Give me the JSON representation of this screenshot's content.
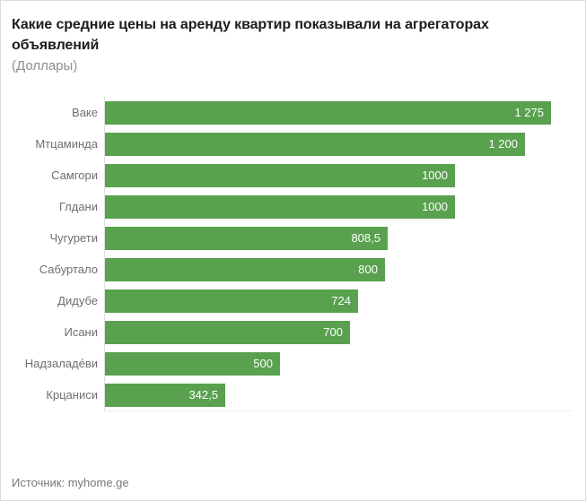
{
  "header": {
    "title": "Какие средние цены на аренду квартир показывали на агрегаторах объявлений",
    "subtitle": "(Доллары)"
  },
  "chart_data": {
    "type": "bar",
    "orientation": "horizontal",
    "title": "Какие средние цены на аренду квартир показывали на агрегаторах объявлений",
    "subtitle": "(Доллары)",
    "categories": [
      "Ваке",
      "Мтцаминда",
      "Самгори",
      "Глдани",
      "Чугурети",
      "Сабуртало",
      "Дидубе",
      "Исани",
      "Надзаладе́ви",
      "Крцаниси"
    ],
    "values": [
      1275,
      1200,
      1000,
      1000,
      808.5,
      800,
      724,
      700,
      500,
      342.5
    ],
    "value_labels": [
      "1 275",
      "1 200",
      "1000",
      "1000",
      "808,5",
      "800",
      "724",
      "700",
      "500",
      "342,5"
    ],
    "xlabel": "",
    "ylabel": "",
    "xlim": [
      0,
      1275
    ],
    "grid": false,
    "legend": false,
    "value_label_position": "inside-end"
  },
  "footer": {
    "source": "Источник: myhome.ge"
  },
  "colors": {
    "bar": "#59a14f",
    "axis_line": "#e0e0e0",
    "value_text": "#ffffff"
  }
}
